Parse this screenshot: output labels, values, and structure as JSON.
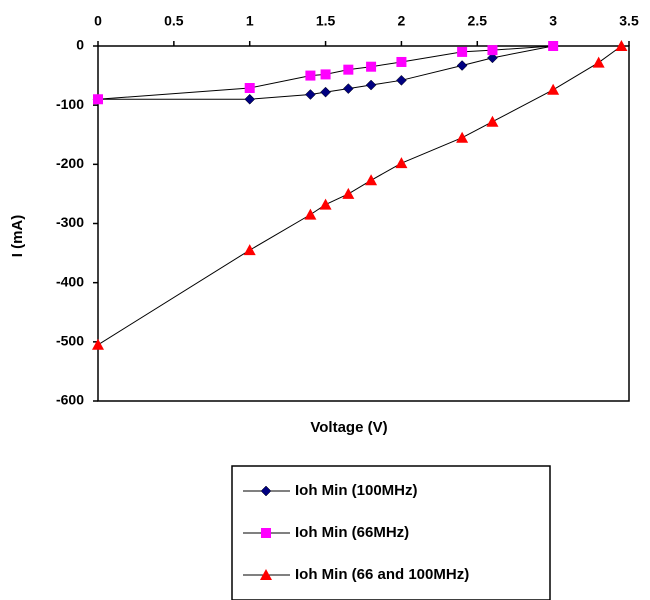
{
  "chart_data": {
    "type": "line",
    "xlabel": "Voltage (V)",
    "ylabel": "I (mA)",
    "xlim": [
      0,
      3.5
    ],
    "ylim": [
      -600,
      0
    ],
    "x_axis_position": "top",
    "xticks": [
      0,
      0.5,
      1,
      1.5,
      2,
      2.5,
      3,
      3.5
    ],
    "xtick_labels": [
      "0",
      "0.5",
      "1",
      "1.5",
      "2",
      "2.5",
      "3",
      "3.5"
    ],
    "yticks": [
      0,
      -100,
      -200,
      -300,
      -400,
      -500,
      -600
    ],
    "ytick_labels": [
      "0",
      "-100",
      "-200",
      "-300",
      "-400",
      "-500",
      "-600"
    ],
    "grid": false,
    "legend_position": "bottom",
    "series": [
      {
        "name": "Ioh Min (100MHz)",
        "color": "#000080",
        "marker": "diamond",
        "x": [
          0,
          1,
          1.4,
          1.5,
          1.65,
          1.8,
          2,
          2.4,
          2.6,
          3
        ],
        "y": [
          -90,
          -90,
          -82,
          -78,
          -72,
          -66,
          -58,
          -33,
          -20,
          0
        ]
      },
      {
        "name": "Ioh Min (66MHz)",
        "color": "#ff00ff",
        "marker": "square",
        "x": [
          0,
          1,
          1.4,
          1.5,
          1.65,
          1.8,
          2,
          2.4,
          2.6,
          3
        ],
        "y": [
          -90,
          -71,
          -50,
          -48,
          -40,
          -35,
          -27,
          -10,
          -7,
          0
        ]
      },
      {
        "name": "Ioh Min (66 and 100MHz)",
        "color": "#ff0000",
        "marker": "triangle",
        "x": [
          0,
          1,
          1.4,
          1.5,
          1.65,
          1.8,
          2,
          2.4,
          2.6,
          3,
          3.3,
          3.45
        ],
        "y": [
          -505,
          -345,
          -285,
          -268,
          -250,
          -227,
          -198,
          -155,
          -128,
          -74,
          -28,
          0
        ]
      }
    ]
  }
}
